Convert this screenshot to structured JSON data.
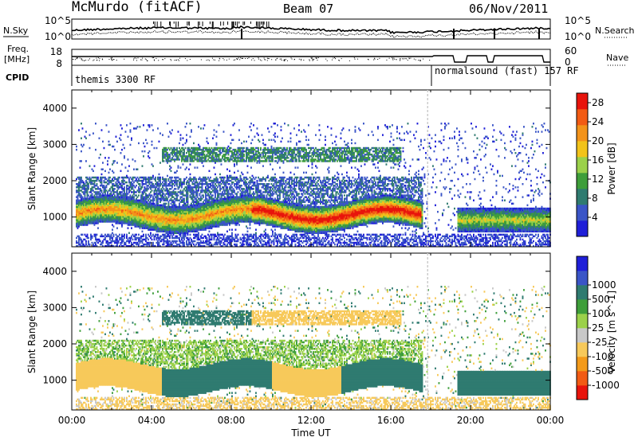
{
  "header": {
    "station": "McMurdo (fitACF)",
    "beam": "Beam 07",
    "date": "06/Nov/2011"
  },
  "left_labels": {
    "nsky": "N.Sky",
    "freq_line1": "Freq.",
    "freq_line2": "[MHz]",
    "cpid": "CPID"
  },
  "right_labels": {
    "nsearch": "N.Search",
    "nave": "Nave"
  },
  "nsky_ticks": [
    "10^5",
    "10^0"
  ],
  "nsearch_ticks": [
    "10^5",
    "10^0"
  ],
  "freq_ticks": [
    "18",
    "8"
  ],
  "nave_ticks": [
    "60",
    "0"
  ],
  "cpid_labels": {
    "first": "themis 3300 RF",
    "second": "normalsound (fast) 157 RF"
  },
  "colors": {
    "power": [
      "#1f1fd8",
      "#3a55c7",
      "#2f7b70",
      "#3e9e3a",
      "#9bd14a",
      "#f2c31a",
      "#f3931a",
      "#f25b14",
      "#e8140c"
    ],
    "velocity": [
      "#e8140c",
      "#f25b14",
      "#f39a1a",
      "#f7c95a",
      "#c8c8c8",
      "#9bd14a",
      "#3e9e3a",
      "#2f7b70",
      "#3a55c7",
      "#1f1fd8"
    ]
  },
  "chart_data": [
    {
      "type": "heatmap",
      "title": "",
      "xlabel": "Time UT",
      "ylabel": "Slant Range [km]",
      "x_ticks": [
        "00:00",
        "04:00",
        "08:00",
        "12:00",
        "16:00",
        "20:00",
        "00:00"
      ],
      "y_ticks": [
        "1000",
        "2000",
        "3000",
        "4000"
      ],
      "xlim": [
        0,
        24
      ],
      "ylim": [
        180,
        4500
      ],
      "colorbar": {
        "label": "Power [dB]",
        "ticks": [
          "4",
          "8",
          "12",
          "16",
          "20",
          "24",
          "28"
        ],
        "range": [
          0,
          30
        ]
      },
      "features": [
        {
          "time_start": 0.2,
          "time_end": 17.5,
          "range_center": 1050,
          "description": "strongest band",
          "power_db": 28
        },
        {
          "time_start": 0.2,
          "time_end": 17.8,
          "range_center": 1500,
          "power_db": 6
        },
        {
          "time_start": 4.5,
          "time_end": 16.5,
          "range_center": 2700,
          "power_db": 8
        },
        {
          "time_start": 19.5,
          "time_end": 24.0,
          "range_center": 900,
          "power_db": 14
        }
      ]
    },
    {
      "type": "heatmap",
      "title": "",
      "xlabel": "Time UT",
      "ylabel": "Slant Range [km]",
      "x_ticks": [
        "00:00",
        "04:00",
        "08:00",
        "12:00",
        "16:00",
        "20:00",
        "00:00"
      ],
      "y_ticks": [
        "1000",
        "2000",
        "3000",
        "4000"
      ],
      "xlim": [
        0,
        24
      ],
      "ylim": [
        180,
        4500
      ],
      "colorbar": {
        "label": "Velocity [m s^-1]",
        "ticks": [
          "-1000",
          "-500",
          "-100",
          "-25",
          "25",
          "100",
          "500",
          "1000"
        ],
        "range": [
          -1200,
          1200
        ]
      },
      "features": [
        {
          "time_start": 0.2,
          "time_end": 4.5,
          "range_center": 1150,
          "velocity": -100
        },
        {
          "time_start": 4.5,
          "time_end": 10.0,
          "range_center": 1300,
          "velocity": 100
        },
        {
          "time_start": 10.0,
          "time_end": 13.5,
          "range_center": 1200,
          "velocity": -100
        },
        {
          "time_start": 13.5,
          "time_end": 17.5,
          "range_center": 1300,
          "velocity": 100
        },
        {
          "time_start": 15.5,
          "time_end": 17.5,
          "range_center": 1200,
          "velocity": 500
        }
      ]
    }
  ]
}
